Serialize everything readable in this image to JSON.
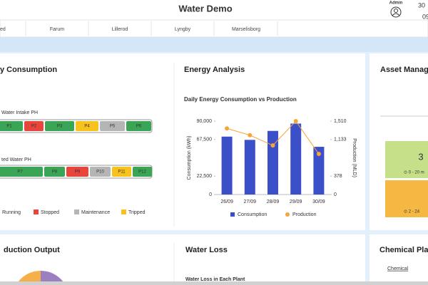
{
  "header": {
    "title": "Water Demo",
    "user": "Admin",
    "date_top": "30",
    "date_bottom": "09"
  },
  "tabs": [
    "ed",
    "Farum",
    "Lillerod",
    "Lyngby",
    "Marselisborg"
  ],
  "consumption": {
    "title": "y Consumption",
    "groups": [
      {
        "label": "Water Intake PH",
        "pumps": [
          {
            "name": "P1",
            "status": 0
          },
          {
            "name": "P2",
            "status": 1
          },
          {
            "name": "P3",
            "status": 0
          },
          {
            "name": "P4",
            "status": 3
          },
          {
            "name": "P5",
            "status": 2
          },
          {
            "name": "P6",
            "status": 0
          }
        ]
      },
      {
        "label": "ted Water PH",
        "pumps": [
          {
            "name": "P7",
            "status": 0
          },
          {
            "name": "P8",
            "status": 0
          },
          {
            "name": "P9",
            "status": 1
          },
          {
            "name": "P10",
            "status": 2
          },
          {
            "name": "P11",
            "status": 3
          },
          {
            "name": "P12",
            "status": 0
          }
        ]
      }
    ],
    "legend": [
      {
        "label": "Running",
        "color": "#3aa655"
      },
      {
        "label": "Stopped",
        "color": "#e8453c"
      },
      {
        "label": "Maintenance",
        "color": "#b5b5b5"
      },
      {
        "label": "Tripped",
        "color": "#f7c21b"
      }
    ]
  },
  "energy": {
    "title": "Energy Analysis"
  },
  "chart_data": {
    "type": "bar_line",
    "title": "Daily Energy Consumption vs Production",
    "categories": [
      "26/09",
      "27/09",
      "28/09",
      "29/09",
      "30/09"
    ],
    "series": [
      {
        "name": "Consumption",
        "color": "#3b4fc8",
        "type": "bar",
        "values": [
          71000,
          67000,
          78000,
          87000,
          58500
        ]
      },
      {
        "name": "Production",
        "color": "#f5a53a",
        "type": "line",
        "axis": "y2",
        "values": [
          1360,
          1220,
          1010,
          1510,
          835
        ]
      }
    ],
    "ylabel": "Consumption (kWh)",
    "y2label": "Production (MLD)",
    "ylim": [
      0,
      90000
    ],
    "yticks": [
      0,
      {
        "value": 22500,
        "label": "22,500"
      },
      {
        "value": 67500,
        "label": "67,500"
      },
      {
        "value": 90000,
        "label": "90,000"
      }
    ],
    "y2lim": [
      0,
      1510
    ],
    "y2ticks": [
      0,
      378,
      {
        "value": 1133,
        "label": "1,133"
      },
      {
        "value": 1510,
        "label": "1,510"
      }
    ]
  },
  "asset": {
    "title": "Asset Manage",
    "count": "3",
    "green_range": "⊙ 0 - 20 m",
    "orange_range": "⊙ 2 - 24"
  },
  "production": {
    "title": "duction Output"
  },
  "water_loss": {
    "title": "Water Loss",
    "subtitle": "Water Loss in Each Plant"
  },
  "chemical": {
    "title": "Chemical Plan",
    "link": "Chemical"
  }
}
